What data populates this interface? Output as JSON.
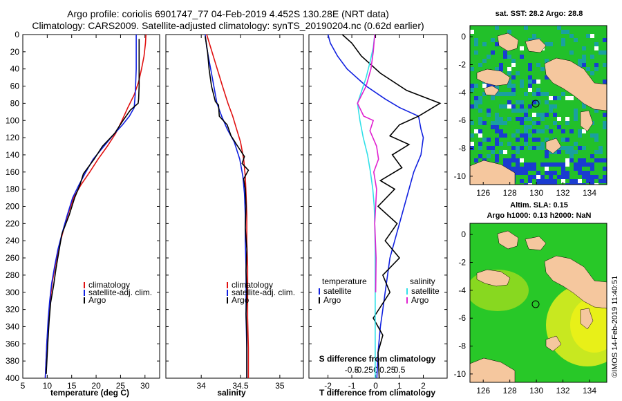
{
  "header": {
    "line1": "Argo profile: coriolis 6901747_77 04-Feb-2019 4.452S 130.28E (NRT data)",
    "line2": "Climatology: CARS2009. Satellite-adjusted climatology: synTS_20190204.nc (0.62d earlier)"
  },
  "maps": {
    "sst_title": "sat. SST: 28.2 Argo: 28.8",
    "sla_title1": "Altim. SLA: 0.15",
    "sla_title2": "Argo h1000: 0.13 h2000: NaN",
    "lat_ticks": [
      "0",
      "-2",
      "-4",
      "-6",
      "-8",
      "-10"
    ],
    "lon_ticks": [
      "126",
      "128",
      "130",
      "132",
      "134"
    ],
    "colors": {
      "land": "#f5c79e",
      "ocean_green": "#22c02a",
      "ocean_blue": "#1a3cd0",
      "sla_yellow": "#e8f018"
    }
  },
  "credit": "©IMOS 14-Feb-2019 11:40:51",
  "chart_data": [
    {
      "type": "line",
      "id": "temperature",
      "xlabel": "temperature (deg C)",
      "ylabel": "",
      "xlim": [
        5,
        33
      ],
      "ylim": [
        400,
        0
      ],
      "x_ticks": [
        "5",
        "10",
        "15",
        "20",
        "25",
        "30"
      ],
      "y_ticks": [
        "0",
        "20",
        "40",
        "60",
        "80",
        "100",
        "120",
        "140",
        "160",
        "180",
        "200",
        "220",
        "240",
        "260",
        "280",
        "300",
        "320",
        "340",
        "360",
        "380",
        "400"
      ],
      "legend": [
        "climatology",
        "satellite-adj. clim.",
        "Argo"
      ],
      "series": [
        {
          "name": "climatology",
          "color": "#e01010",
          "x": [
            30.2,
            30.1,
            29.8,
            29.3,
            28.7,
            27.8,
            26.5,
            25.3,
            24.0,
            22.3,
            20.4,
            18.7,
            16.9,
            15.4,
            14.2,
            13.2,
            12.3,
            11.6,
            11.0,
            10.6,
            10.3,
            9.9,
            9.6
          ],
          "y": [
            0,
            10,
            25,
            40,
            55,
            70,
            85,
            100,
            115,
            130,
            145,
            160,
            175,
            190,
            210,
            230,
            250,
            270,
            290,
            310,
            330,
            360,
            400
          ]
        },
        {
          "name": "satellite-adj. clim.",
          "color": "#1020e0",
          "x": [
            28.2,
            28.2,
            28.2,
            28.1,
            28.0,
            27.8,
            26.8,
            25.4,
            23.8,
            21.6,
            19.4,
            17.9,
            16.5,
            15.2,
            14.1,
            13.1,
            12.2,
            11.5,
            10.9,
            10.5,
            10.2,
            9.9,
            9.6
          ],
          "y": [
            0,
            20,
            40,
            55,
            70,
            85,
            95,
            105,
            115,
            130,
            145,
            160,
            175,
            190,
            210,
            230,
            250,
            270,
            290,
            310,
            330,
            360,
            400
          ]
        },
        {
          "name": "Argo",
          "color": "#000000",
          "x": [
            28.8,
            28.8,
            28.8,
            28.8,
            28.7,
            28.6,
            27.0,
            25.5,
            23.8,
            21.3,
            19.6,
            17.4,
            16.7,
            15.6,
            14.5,
            13.0,
            12.4,
            11.8,
            11.3,
            10.7,
            10.4,
            10.1,
            9.8
          ],
          "y": [
            5,
            20,
            40,
            60,
            75,
            80,
            88,
            100,
            115,
            130,
            145,
            162,
            175,
            190,
            210,
            232,
            252,
            272,
            292,
            312,
            332,
            360,
            395
          ]
        }
      ]
    },
    {
      "type": "line",
      "id": "salinity",
      "xlabel": "salinity",
      "xlim": [
        33.55,
        35.3
      ],
      "ylim": [
        400,
        0
      ],
      "x_ticks": [
        "34",
        "34.5",
        "35"
      ],
      "legend": [
        "climatology",
        "satellite-adj. clim.",
        "Argo"
      ],
      "series": [
        {
          "name": "climatology",
          "color": "#e01010",
          "x": [
            34.07,
            34.12,
            34.17,
            34.22,
            34.27,
            34.34,
            34.4,
            34.45,
            34.5,
            34.54,
            34.56,
            34.57,
            34.58,
            34.58,
            34.59,
            34.59,
            34.59,
            34.6,
            34.6
          ],
          "y": [
            0,
            15,
            30,
            45,
            60,
            80,
            95,
            110,
            125,
            145,
            165,
            185,
            210,
            240,
            270,
            300,
            330,
            365,
            400
          ]
        },
        {
          "name": "satellite-adj. clim.",
          "color": "#1020e0",
          "x": [
            34.05,
            34.07,
            34.1,
            34.13,
            34.16,
            34.2,
            34.26,
            34.33,
            34.42,
            34.49,
            34.53,
            34.55,
            34.56,
            34.56,
            34.57,
            34.57,
            34.57,
            34.58,
            34.58
          ],
          "y": [
            0,
            15,
            30,
            45,
            60,
            80,
            95,
            110,
            125,
            145,
            165,
            185,
            210,
            240,
            270,
            300,
            330,
            365,
            400
          ]
        },
        {
          "name": "Argo",
          "color": "#000000",
          "x": [
            34.05,
            34.08,
            34.1,
            34.13,
            34.18,
            34.22,
            34.23,
            34.33,
            34.38,
            34.45,
            34.5,
            34.55,
            34.52,
            34.6,
            34.54,
            34.56,
            34.57,
            34.56,
            34.58,
            34.57,
            34.58,
            34.57,
            34.58,
            34.58,
            34.58
          ],
          "y": [
            2,
            20,
            40,
            60,
            78,
            82,
            95,
            105,
            118,
            128,
            135,
            142,
            150,
            158,
            168,
            180,
            200,
            225,
            250,
            275,
            300,
            325,
            350,
            375,
            400
          ]
        }
      ]
    },
    {
      "type": "line",
      "id": "differences",
      "xlabel": "T difference from climatology",
      "xlabel_top": "S difference from climatology",
      "xlim": [
        -2.8,
        3
      ],
      "ylim": [
        400,
        0
      ],
      "x_ticks": [
        "-2",
        "-1",
        "0",
        "1",
        "2"
      ],
      "x_ticks_top": [
        "-0.5",
        "-0.25",
        "0",
        "0.25",
        "0.5"
      ],
      "legend_left_title": "temperature",
      "legend_right_title": "salinity",
      "legend_left": [
        "satellite",
        "Argo"
      ],
      "legend_right": [
        "satellite",
        "Argo"
      ],
      "series": [
        {
          "name": "T satellite",
          "color": "#1020e0",
          "x": [
            -2.0,
            -1.9,
            -1.6,
            -1.2,
            -0.4,
            0.4,
            1.0,
            1.8,
            1.9,
            2.0,
            1.9,
            1.6,
            1.4,
            1.2,
            1.0,
            0.8,
            0.6,
            0.5,
            0.4,
            0.3,
            0.2,
            0.1,
            0.05
          ],
          "y": [
            0,
            10,
            25,
            40,
            60,
            75,
            85,
            95,
            110,
            120,
            140,
            160,
            180,
            200,
            220,
            240,
            260,
            280,
            300,
            320,
            340,
            370,
            400
          ]
        },
        {
          "name": "T Argo",
          "color": "#000000",
          "x": [
            -1.4,
            -1.0,
            -0.6,
            0.2,
            1.3,
            2.7,
            1.8,
            1.0,
            0.6,
            1.4,
            0.7,
            1.1,
            0.2,
            0.8,
            0.1,
            0.9,
            0.4,
            1.0,
            0.3,
            0.6,
            -0.1,
            0.3,
            0.1,
            0.15
          ],
          "y": [
            0,
            10,
            25,
            45,
            65,
            80,
            95,
            105,
            118,
            128,
            140,
            155,
            170,
            180,
            200,
            220,
            240,
            260,
            280,
            300,
            330,
            350,
            370,
            400
          ]
        },
        {
          "name": "S satellite",
          "color": "#30e0e8",
          "x": [
            -0.02,
            -0.05,
            -0.11,
            -0.2,
            -0.38,
            -0.33,
            -0.26,
            -0.17,
            -0.11,
            -0.06,
            -0.03,
            -0.02,
            -0.01,
            -0.01,
            -0.01,
            -0.01,
            -0.01,
            -0.01,
            -0.01
          ],
          "y": [
            0,
            15,
            30,
            50,
            80,
            100,
            120,
            140,
            160,
            180,
            200,
            220,
            250,
            280,
            300,
            330,
            360,
            380,
            400
          ]
        },
        {
          "name": "S Argo",
          "color": "#e020d0",
          "x": [
            -0.02,
            -0.05,
            -0.1,
            -0.2,
            -0.38,
            -0.25,
            -0.05,
            -0.12,
            0.02,
            0.06,
            -0.04,
            0.02,
            -0.02,
            0.01,
            0.0
          ],
          "y": [
            0,
            20,
            40,
            60,
            80,
            95,
            100,
            112,
            130,
            145,
            160,
            180,
            220,
            260,
            300
          ]
        }
      ]
    }
  ]
}
